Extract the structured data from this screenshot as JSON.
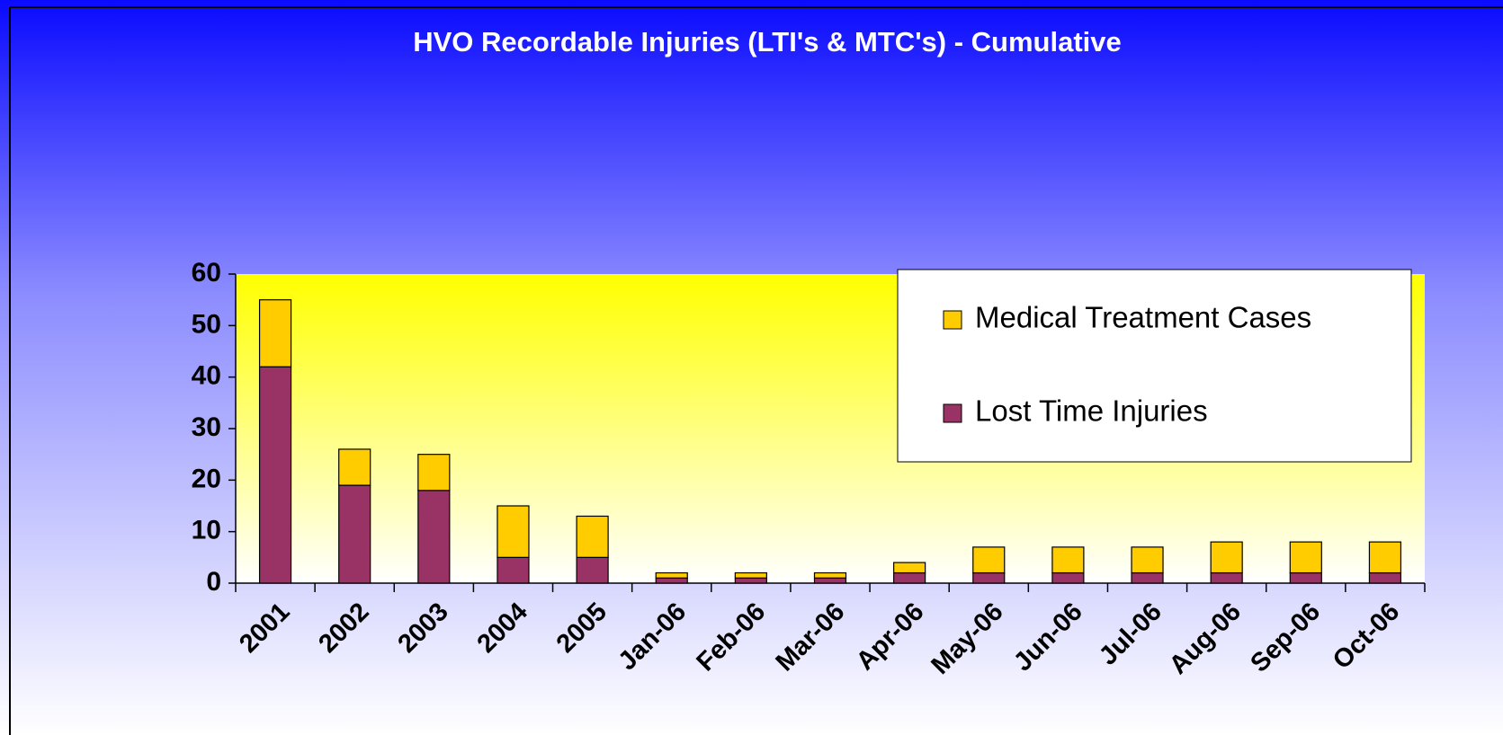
{
  "chart_data": {
    "type": "stacked_bar",
    "title": "HVO Recordable Injuries  (LTI's & MTC's) - Cumulative",
    "categories": [
      "2001",
      "2002",
      "2003",
      "2004",
      "2005",
      "Jan-06",
      "Feb-06",
      "Mar-06",
      "Apr-06",
      "May-06",
      "Jun-06",
      "Jul-06",
      "Aug-06",
      "Sep-06",
      "Oct-06"
    ],
    "series": [
      {
        "name": "Lost Time Injuries",
        "color": "#993366",
        "values": [
          42,
          19,
          18,
          5,
          5,
          1,
          1,
          1,
          2,
          2,
          2,
          2,
          2,
          2,
          2
        ]
      },
      {
        "name": "Medical Treatment Cases",
        "color": "#ffcc00",
        "values": [
          13,
          7,
          7,
          10,
          8,
          1,
          1,
          1,
          2,
          5,
          5,
          5,
          6,
          6,
          6
        ]
      }
    ],
    "ylim": [
      0,
      60
    ],
    "yticks": [
      0,
      10,
      20,
      30,
      40,
      50,
      60
    ],
    "legend": "top-right"
  }
}
